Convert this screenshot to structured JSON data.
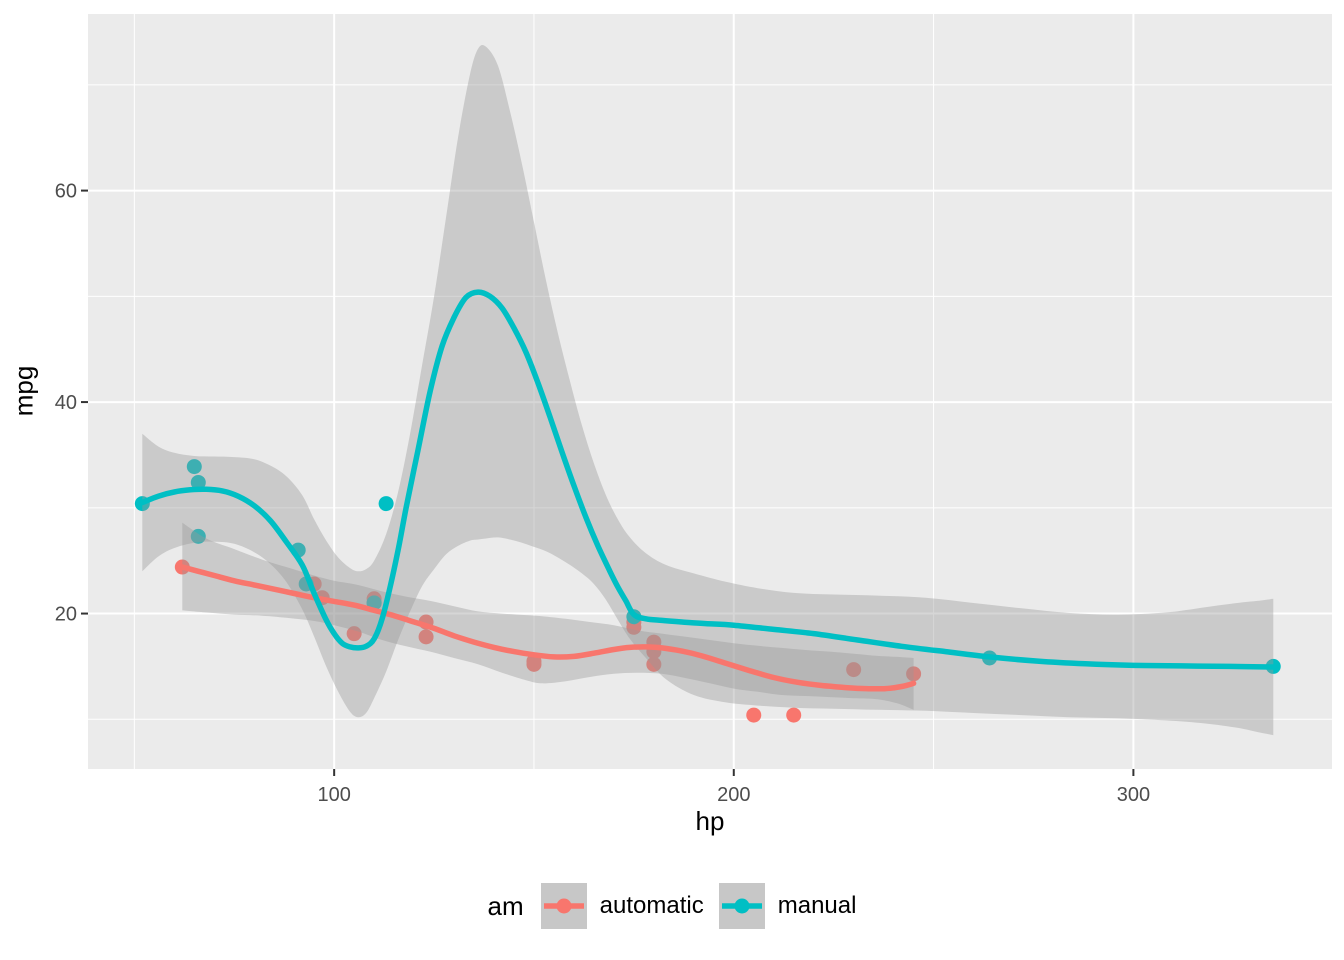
{
  "axes": {
    "x": {
      "title": "hp",
      "ticks": [
        100,
        200,
        300
      ],
      "minor_ticks": [
        50,
        150,
        250,
        350
      ],
      "range": [
        38.4,
        349.7
      ]
    },
    "y": {
      "title": "mpg",
      "ticks": [
        20,
        40,
        60
      ],
      "minor_ticks": [
        10,
        30,
        50,
        70
      ],
      "range": [
        5.3,
        76.7
      ]
    }
  },
  "legend": {
    "title": "am",
    "items": [
      {
        "label": "automatic",
        "color": "#F8766D"
      },
      {
        "label": "manual",
        "color": "#00BFC4"
      }
    ]
  },
  "chart_data": {
    "type": "scatter",
    "description": "Scatter plot of mpg vs hp (mtcars) with loess smooth lines and 95% confidence ribbons, grouped by transmission am",
    "xlabel": "hp",
    "ylabel": "mpg",
    "xlim": [
      38.4,
      349.7
    ],
    "ylim": [
      5.3,
      76.7
    ],
    "grid": "on",
    "legend_position": "bottom",
    "styles": {
      "panel_bg": "#EBEBEB",
      "grid_color": "#FFFFFF",
      "ribbon_fill": "#999999",
      "ribbon_opacity": 0.4,
      "tick_mark_color": "#333333",
      "tick_text_color": "#4D4D4D",
      "legend_key_bg": "#C7C7C7",
      "point_radius": 7.5,
      "line_width": 5.5
    },
    "series": [
      {
        "name": "automatic",
        "color": "#F8766D",
        "points": [
          [
            110,
            21.4
          ],
          [
            175,
            18.7
          ],
          [
            105,
            18.1
          ],
          [
            245,
            14.3
          ],
          [
            62,
            24.4
          ],
          [
            95,
            22.8
          ],
          [
            123,
            19.2
          ],
          [
            123,
            17.8
          ],
          [
            180,
            16.4
          ],
          [
            180,
            17.3
          ],
          [
            180,
            15.2
          ],
          [
            205,
            10.4
          ],
          [
            215,
            10.4
          ],
          [
            230,
            14.7
          ],
          [
            97,
            21.5
          ],
          [
            150,
            15.5
          ],
          [
            150,
            15.2
          ],
          [
            175,
            19.2
          ]
        ],
        "smooth_line": [
          [
            62,
            24.4
          ],
          [
            66,
            24.0
          ],
          [
            70,
            23.6
          ],
          [
            75,
            23.1
          ],
          [
            80,
            22.7
          ],
          [
            85,
            22.3
          ],
          [
            90,
            21.9
          ],
          [
            95,
            21.5
          ],
          [
            100,
            21.15
          ],
          [
            105,
            20.8
          ],
          [
            110,
            20.3
          ],
          [
            115,
            19.8
          ],
          [
            120,
            19.2
          ],
          [
            125,
            18.6
          ],
          [
            130,
            17.9
          ],
          [
            135,
            17.3
          ],
          [
            140,
            16.8
          ],
          [
            145,
            16.4
          ],
          [
            150,
            16.1
          ],
          [
            155,
            15.9
          ],
          [
            160,
            15.95
          ],
          [
            165,
            16.25
          ],
          [
            170,
            16.6
          ],
          [
            174,
            16.8
          ],
          [
            178,
            16.85
          ],
          [
            182,
            16.75
          ],
          [
            187,
            16.45
          ],
          [
            192,
            16.0
          ],
          [
            198,
            15.3
          ],
          [
            204,
            14.6
          ],
          [
            210,
            13.95
          ],
          [
            216,
            13.5
          ],
          [
            222,
            13.2
          ],
          [
            228,
            13.0
          ],
          [
            233,
            12.9
          ],
          [
            238,
            12.9
          ],
          [
            242,
            13.1
          ],
          [
            245,
            13.4
          ]
        ],
        "ribbon": [
          [
            62,
            20.3,
            28.6
          ],
          [
            68,
            20.1,
            27.1
          ],
          [
            75,
            19.9,
            26.1
          ],
          [
            82,
            19.8,
            25.1
          ],
          [
            88,
            19.6,
            24.4
          ],
          [
            95,
            19.3,
            23.6
          ],
          [
            100,
            18.9,
            23.1
          ],
          [
            106,
            18.3,
            22.7
          ],
          [
            112,
            17.5,
            22.1
          ],
          [
            118,
            16.9,
            21.6
          ],
          [
            124,
            16.4,
            21.2
          ],
          [
            130,
            15.8,
            20.7
          ],
          [
            136,
            15.2,
            20.2
          ],
          [
            142,
            14.4,
            20.0
          ],
          [
            148,
            13.7,
            19.85
          ],
          [
            152,
            13.4,
            19.75
          ],
          [
            158,
            13.6,
            19.5
          ],
          [
            164,
            14.0,
            19.2
          ],
          [
            170,
            14.3,
            18.9
          ],
          [
            176,
            14.4,
            18.4
          ],
          [
            182,
            14.3,
            18.1
          ],
          [
            188,
            13.9,
            17.8
          ],
          [
            194,
            13.4,
            17.5
          ],
          [
            200,
            12.9,
            17.2
          ],
          [
            206,
            12.6,
            16.95
          ],
          [
            212,
            12.3,
            16.75
          ],
          [
            218,
            12.2,
            16.55
          ],
          [
            224,
            12.1,
            16.4
          ],
          [
            230,
            12.0,
            16.2
          ],
          [
            236,
            11.9,
            16.0
          ],
          [
            241,
            11.5,
            15.9
          ],
          [
            245,
            10.9,
            15.8
          ]
        ]
      },
      {
        "name": "manual",
        "color": "#00BFC4",
        "points": [
          [
            110,
            21.0
          ],
          [
            110,
            21.0
          ],
          [
            93,
            22.8
          ],
          [
            66,
            32.4
          ],
          [
            52,
            30.4
          ],
          [
            65,
            33.9
          ],
          [
            66,
            27.3
          ],
          [
            91,
            26.0
          ],
          [
            113,
            30.4
          ],
          [
            264,
            15.8
          ],
          [
            175,
            19.7
          ],
          [
            335,
            15.0
          ]
        ],
        "smooth_line": [
          [
            52,
            30.5
          ],
          [
            56,
            31.1
          ],
          [
            60,
            31.5
          ],
          [
            64,
            31.7
          ],
          [
            68,
            31.75
          ],
          [
            72,
            31.6
          ],
          [
            76,
            31.1
          ],
          [
            80,
            30.2
          ],
          [
            84,
            28.8
          ],
          [
            88,
            26.8
          ],
          [
            92,
            24.6
          ],
          [
            95,
            21.9
          ],
          [
            98,
            19.4
          ],
          [
            100,
            18.1
          ],
          [
            102,
            17.2
          ],
          [
            104,
            16.85
          ],
          [
            106,
            16.75
          ],
          [
            108,
            16.9
          ],
          [
            110,
            17.6
          ],
          [
            112,
            19.5
          ],
          [
            114,
            22.5
          ],
          [
            116,
            26.0
          ],
          [
            118,
            30.0
          ],
          [
            121,
            35.5
          ],
          [
            124,
            41.0
          ],
          [
            127,
            45.3
          ],
          [
            130,
            48.0
          ],
          [
            133,
            49.9
          ],
          [
            136,
            50.4
          ],
          [
            139,
            50.0
          ],
          [
            142,
            48.9
          ],
          [
            145,
            47.0
          ],
          [
            148,
            44.7
          ],
          [
            151,
            41.8
          ],
          [
            154,
            38.6
          ],
          [
            157,
            35.3
          ],
          [
            160,
            32.1
          ],
          [
            163,
            29.1
          ],
          [
            166,
            26.4
          ],
          [
            169,
            24.0
          ],
          [
            171,
            22.5
          ],
          [
            173,
            21.2
          ],
          [
            175,
            19.9
          ],
          [
            178,
            19.5
          ],
          [
            182,
            19.35
          ],
          [
            187,
            19.2
          ],
          [
            193,
            19.05
          ],
          [
            200,
            18.9
          ],
          [
            210,
            18.5
          ],
          [
            220,
            18.1
          ],
          [
            231,
            17.5
          ],
          [
            242,
            16.9
          ],
          [
            253,
            16.4
          ],
          [
            264,
            15.9
          ],
          [
            276,
            15.5
          ],
          [
            288,
            15.25
          ],
          [
            300,
            15.1
          ],
          [
            312,
            15.05
          ],
          [
            324,
            15.0
          ],
          [
            335,
            14.95
          ]
        ],
        "ribbon": [
          [
            52,
            24.0,
            37.0
          ],
          [
            56,
            25.4,
            35.8
          ],
          [
            60,
            26.2,
            35.2
          ],
          [
            65,
            26.7,
            34.9
          ],
          [
            70,
            26.8,
            34.85
          ],
          [
            75,
            26.6,
            34.8
          ],
          [
            80,
            25.8,
            34.6
          ],
          [
            84,
            24.7,
            34.0
          ],
          [
            88,
            23.0,
            33.0
          ],
          [
            92,
            20.4,
            31.2
          ],
          [
            95,
            17.8,
            28.9
          ],
          [
            98,
            15.0,
            26.9
          ],
          [
            101,
            12.6,
            25.3
          ],
          [
            104,
            10.7,
            24.3
          ],
          [
            106,
            10.2,
            24.0
          ],
          [
            108,
            10.6,
            24.2
          ],
          [
            110,
            12.0,
            25.0
          ],
          [
            113,
            14.5,
            27.5
          ],
          [
            116,
            17.5,
            31.5
          ],
          [
            119,
            20.2,
            37.0
          ],
          [
            122,
            22.6,
            43.5
          ],
          [
            125,
            24.2,
            50.0
          ],
          [
            128,
            25.6,
            57.5
          ],
          [
            131,
            26.4,
            65.0
          ],
          [
            134,
            26.9,
            71.0
          ],
          [
            136,
            27.0,
            73.4
          ],
          [
            138,
            27.1,
            73.6
          ],
          [
            141,
            27.2,
            71.8
          ],
          [
            144,
            27.0,
            67.5
          ],
          [
            147,
            26.7,
            62.5
          ],
          [
            150,
            26.3,
            57.0
          ],
          [
            153,
            25.9,
            51.5
          ],
          [
            156,
            25.3,
            46.5
          ],
          [
            159,
            24.6,
            42.0
          ],
          [
            162,
            23.8,
            37.8
          ],
          [
            165,
            22.8,
            34.2
          ],
          [
            168,
            21.3,
            31.2
          ],
          [
            171,
            19.4,
            28.9
          ],
          [
            174,
            17.6,
            27.2
          ],
          [
            178,
            15.8,
            25.7
          ],
          [
            183,
            13.8,
            24.6
          ],
          [
            190,
            12.3,
            23.8
          ],
          [
            198,
            11.6,
            23.0
          ],
          [
            206,
            11.3,
            22.4
          ],
          [
            215,
            11.1,
            21.95
          ],
          [
            225,
            11.0,
            21.8
          ],
          [
            236,
            10.9,
            21.7
          ],
          [
            248,
            10.8,
            21.5
          ],
          [
            260,
            10.6,
            21.0
          ],
          [
            272,
            10.4,
            20.5
          ],
          [
            284,
            10.2,
            20.05
          ],
          [
            296,
            10.1,
            19.9
          ],
          [
            308,
            9.9,
            20.1
          ],
          [
            318,
            9.6,
            20.6
          ],
          [
            326,
            9.2,
            21.0
          ],
          [
            331,
            8.8,
            21.2
          ],
          [
            335,
            8.5,
            21.4
          ]
        ]
      }
    ]
  }
}
